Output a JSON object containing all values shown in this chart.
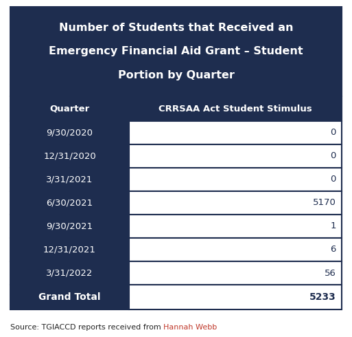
{
  "title_lines": [
    "Number of Students that Received an",
    "Emergency Financial Aid Grant – Student",
    "Portion by Quarter"
  ],
  "title_bg_color": "#1e2d4f",
  "title_text_color": "#ffffff",
  "header_bg_color": "#1e2d4f",
  "header_text_color": "#ffffff",
  "row_bg_color_light": "#ffffff",
  "row_bg_color_dark": "#1e2d4f",
  "row_text_color": "#1e2d4f",
  "total_row_bg_color": "#1e2d4f",
  "total_row_text_color": "#ffffff",
  "col1_header": "Quarter",
  "col2_header": "CRRSAA Act Student Stimulus",
  "quarters": [
    "9/30/2020",
    "12/31/2020",
    "3/31/2021",
    "6/30/2021",
    "9/30/2021",
    "12/31/2021",
    "3/31/2022"
  ],
  "values": [
    "0",
    "0",
    "0",
    "5170",
    "1",
    "6",
    "56"
  ],
  "grand_total_label": "Grand Total",
  "grand_total_value": "5233",
  "source_prefix": "Source: TGIACCD reports received from ",
  "source_name": "Hannah Webb",
  "source_name_color": "#c0392b",
  "source_text_color": "#222222",
  "fig_bg_color": "#ffffff",
  "border_color": "#1e2d4f",
  "title_fontsize": 11.5,
  "header_fontsize": 9.5,
  "data_fontsize": 9.5,
  "total_fontsize": 10,
  "source_fontsize": 8
}
